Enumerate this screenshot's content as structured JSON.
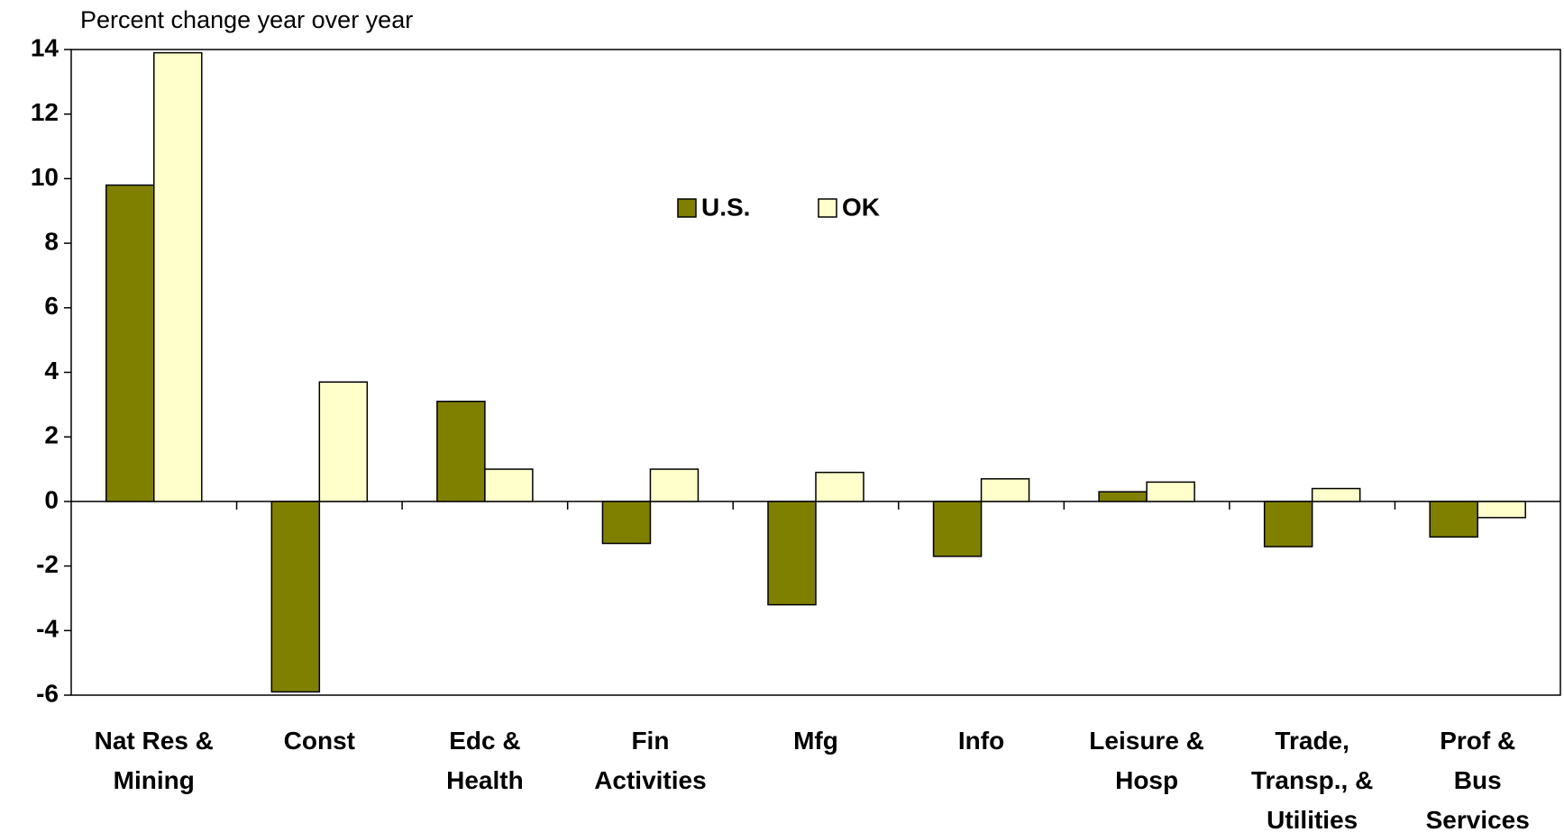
{
  "chart_data": {
    "type": "bar",
    "y_label": "Percent change year over year",
    "categories": [
      [
        "Nat Res &",
        "Mining"
      ],
      [
        "Const"
      ],
      [
        "Edc &",
        "Health"
      ],
      [
        "Fin",
        "Activities"
      ],
      [
        "Mfg"
      ],
      [
        "Info"
      ],
      [
        "Leisure &",
        "Hosp"
      ],
      [
        "Trade,",
        "Transp., &",
        "Utilities"
      ],
      [
        "Prof &",
        "Bus",
        "Services"
      ]
    ],
    "series": [
      {
        "name": "U.S.",
        "color": "#808000",
        "values": [
          9.8,
          -5.9,
          3.1,
          -1.3,
          -3.2,
          -1.7,
          0.3,
          -1.4,
          -1.1
        ]
      },
      {
        "name": "OK",
        "color": "#ffffcc",
        "values": [
          13.9,
          3.7,
          1.0,
          1.0,
          0.9,
          0.7,
          0.6,
          0.4,
          -0.5
        ]
      }
    ],
    "ylim": [
      -6,
      14
    ],
    "yticks": [
      -6,
      -4,
      -2,
      0,
      2,
      4,
      6,
      8,
      10,
      12,
      14
    ],
    "grid": false,
    "legend": "top-center"
  }
}
